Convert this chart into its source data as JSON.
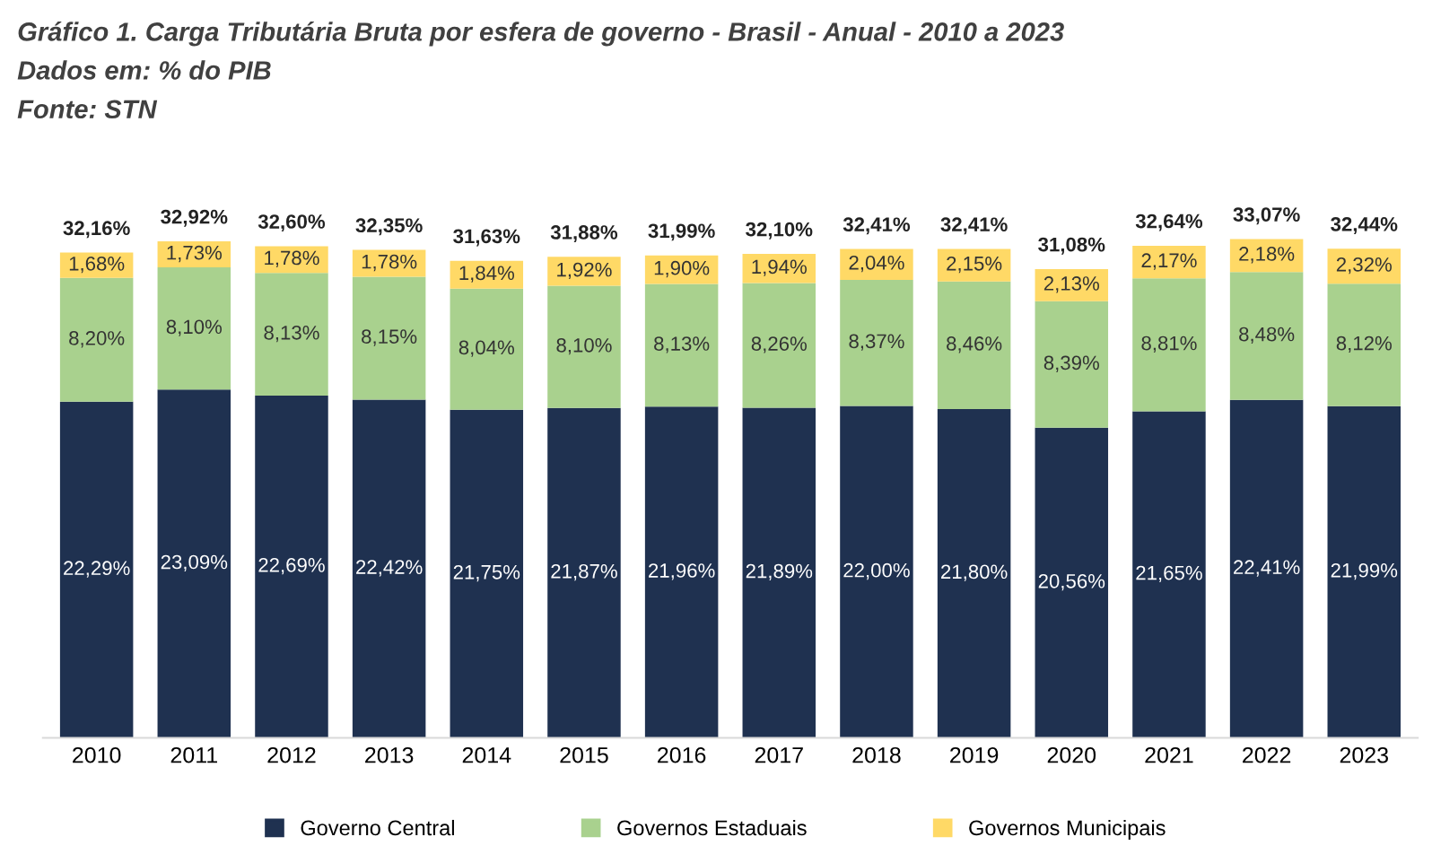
{
  "chart_data": {
    "type": "bar",
    "stacked": true,
    "title": "Gráfico 1. Carga Tributária Bruta por esfera de governo - Brasil - Anual - 2010 a 2023",
    "subtitle": "Dados em: % do PIB",
    "annotations": [
      "Fonte: STN"
    ],
    "categories": [
      "2010",
      "2011",
      "2012",
      "2013",
      "2014",
      "2015",
      "2016",
      "2017",
      "2018",
      "2019",
      "2020",
      "2021",
      "2022",
      "2023"
    ],
    "series": [
      {
        "name": "Governo Central",
        "color": "#1f3150",
        "values": [
          22.29,
          23.09,
          22.69,
          22.42,
          21.75,
          21.87,
          21.96,
          21.89,
          22.0,
          21.8,
          20.56,
          21.65,
          22.41,
          21.99
        ],
        "value_labels": [
          "22,29%",
          "23,09%",
          "22,69%",
          "22,42%",
          "21,75%",
          "21,87%",
          "21,96%",
          "21,89%",
          "22,00%",
          "21,80%",
          "20,56%",
          "21,65%",
          "22,41%",
          "21,99%"
        ]
      },
      {
        "name": "Governos Estaduais",
        "color": "#a9d18e",
        "values": [
          8.2,
          8.1,
          8.13,
          8.15,
          8.04,
          8.1,
          8.13,
          8.26,
          8.37,
          8.46,
          8.39,
          8.81,
          8.48,
          8.12
        ],
        "value_labels": [
          "8,20%",
          "8,10%",
          "8,13%",
          "8,15%",
          "8,04%",
          "8,10%",
          "8,13%",
          "8,26%",
          "8,37%",
          "8,46%",
          "8,39%",
          "8,81%",
          "8,48%",
          "8,12%"
        ]
      },
      {
        "name": "Governos Municipais",
        "color": "#ffd966",
        "values": [
          1.68,
          1.73,
          1.78,
          1.78,
          1.84,
          1.92,
          1.9,
          1.94,
          2.04,
          2.15,
          2.13,
          2.17,
          2.18,
          2.32
        ],
        "value_labels": [
          "1,68%",
          "1,73%",
          "1,78%",
          "1,78%",
          "1,84%",
          "1,92%",
          "1,90%",
          "1,94%",
          "2,04%",
          "2,15%",
          "2,13%",
          "2,17%",
          "2,18%",
          "2,32%"
        ]
      }
    ],
    "totals": [
      "32,16%",
      "32,92%",
      "32,60%",
      "32,35%",
      "31,63%",
      "31,88%",
      "31,99%",
      "32,10%",
      "32,41%",
      "32,41%",
      "31,08%",
      "32,64%",
      "33,07%",
      "32,44%"
    ],
    "legend": "bottom",
    "grid": false
  }
}
